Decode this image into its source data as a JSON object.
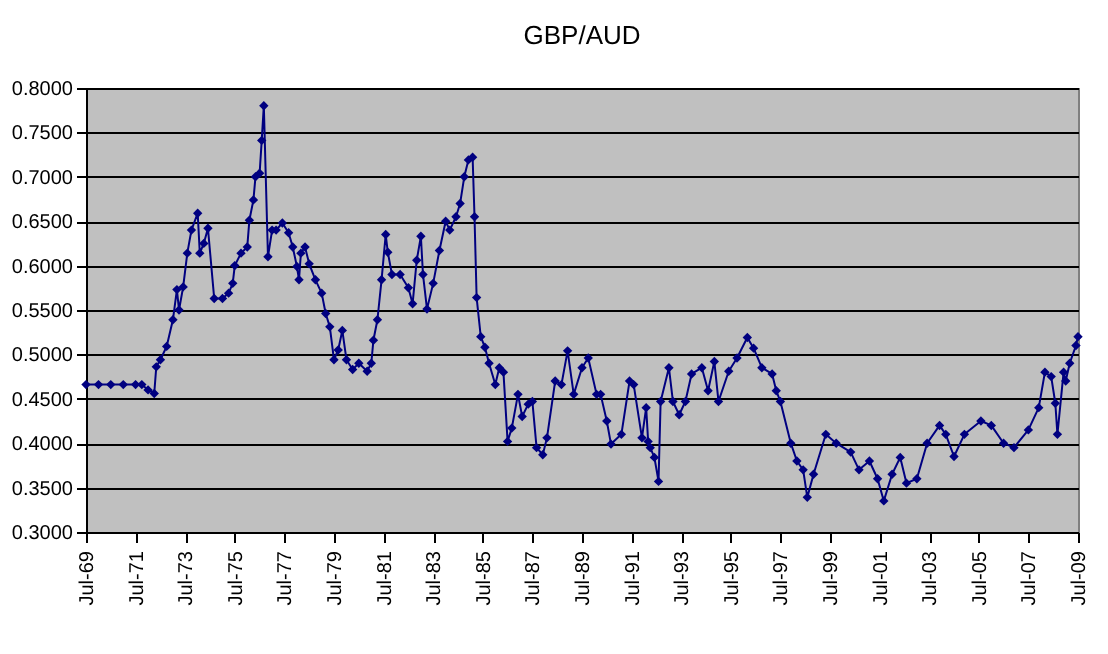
{
  "chart_data": {
    "type": "line",
    "title": "GBP/AUD",
    "x": [
      "1969-07",
      "1970-01",
      "1970-07",
      "1971-01",
      "1971-07",
      "1971-10",
      "1972-01",
      "1972-04",
      "1972-05",
      "1972-07",
      "1972-10",
      "1973-01",
      "1973-03",
      "1973-04",
      "1973-06",
      "1973-08",
      "1973-10",
      "1974-01",
      "1974-02",
      "1974-04",
      "1974-06",
      "1974-09",
      "1975-01",
      "1975-04",
      "1975-06",
      "1975-07",
      "1975-10",
      "1976-01",
      "1976-02",
      "1976-04",
      "1976-05",
      "1976-07",
      "1976-08",
      "1976-09",
      "1976-11",
      "1977-01",
      "1977-03",
      "1977-06",
      "1977-09",
      "1977-11",
      "1978-01",
      "1978-02",
      "1978-03",
      "1978-05",
      "1978-07",
      "1978-10",
      "1979-01",
      "1979-03",
      "1979-05",
      "1979-07",
      "1979-09",
      "1979-11",
      "1980-01",
      "1980-04",
      "1980-07",
      "1980-11",
      "1981-01",
      "1981-02",
      "1981-04",
      "1981-06",
      "1981-08",
      "1981-09",
      "1981-11",
      "1982-03",
      "1982-07",
      "1982-09",
      "1982-11",
      "1983-01",
      "1983-02",
      "1983-04",
      "1983-07",
      "1983-10",
      "1984-01",
      "1984-03",
      "1984-06",
      "1984-08",
      "1984-10",
      "1984-12",
      "1985-02",
      "1985-03",
      "1985-04",
      "1985-06",
      "1985-08",
      "1985-10",
      "1986-01",
      "1986-03",
      "1986-05",
      "1986-07",
      "1986-09",
      "1986-12",
      "1987-02",
      "1987-05",
      "1987-07",
      "1987-09",
      "1987-12",
      "1988-02",
      "1988-06",
      "1988-09",
      "1988-12",
      "1989-03",
      "1989-07",
      "1989-10",
      "1990-02",
      "1990-04",
      "1990-07",
      "1990-09",
      "1991-02",
      "1991-06",
      "1991-08",
      "1991-12",
      "1992-02",
      "1992-03",
      "1992-04",
      "1992-06",
      "1992-08",
      "1992-09",
      "1993-01",
      "1993-03",
      "1993-06",
      "1993-09",
      "1993-12",
      "1994-05",
      "1994-08",
      "1994-11",
      "1995-01",
      "1995-06",
      "1995-10",
      "1996-03",
      "1996-06",
      "1996-10",
      "1997-03",
      "1997-05",
      "1997-07",
      "1997-12",
      "1998-03",
      "1998-06",
      "1998-08",
      "1998-11",
      "1999-05",
      "1999-10",
      "2000-05",
      "2000-09",
      "2001-02",
      "2001-06",
      "2001-09",
      "2002-01",
      "2002-05",
      "2002-08",
      "2003-01",
      "2003-06",
      "2003-12",
      "2004-03",
      "2004-07",
      "2004-12",
      "2005-08",
      "2006-01",
      "2006-07",
      "2006-12",
      "2007-07",
      "2007-12",
      "2008-03",
      "2008-06",
      "2008-08",
      "2008-09",
      "2008-12",
      "2009-01",
      "2009-03",
      "2009-06",
      "2009-07"
    ],
    "series": [
      {
        "color": "#000080",
        "values": [
          0.466,
          0.466,
          0.466,
          0.466,
          0.466,
          0.466,
          0.46,
          0.456,
          0.486,
          0.494,
          0.509,
          0.539,
          0.573,
          0.55,
          0.576,
          0.614,
          0.64,
          0.659,
          0.614,
          0.625,
          0.642,
          0.563,
          0.563,
          0.569,
          0.58,
          0.6,
          0.614,
          0.621,
          0.651,
          0.674,
          0.7,
          0.704,
          0.741,
          0.78,
          0.61,
          0.64,
          0.64,
          0.648,
          0.637,
          0.621,
          0.599,
          0.584,
          0.614,
          0.621,
          0.602,
          0.584,
          0.569,
          0.546,
          0.531,
          0.494,
          0.505,
          0.527,
          0.494,
          0.483,
          0.49,
          0.481,
          0.49,
          0.516,
          0.539,
          0.584,
          0.635,
          0.615,
          0.59,
          0.59,
          0.575,
          0.557,
          0.606,
          0.633,
          0.59,
          0.551,
          0.58,
          0.617,
          0.65,
          0.64,
          0.655,
          0.67,
          0.7,
          0.719,
          0.722,
          0.655,
          0.564,
          0.52,
          0.508,
          0.49,
          0.466,
          0.485,
          0.48,
          0.402,
          0.417,
          0.455,
          0.43,
          0.444,
          0.447,
          0.395,
          0.387,
          0.406,
          0.47,
          0.466,
          0.504,
          0.455,
          0.485,
          0.496,
          0.455,
          0.455,
          0.425,
          0.399,
          0.41,
          0.47,
          0.466,
          0.406,
          0.44,
          0.402,
          0.395,
          0.384,
          0.357,
          0.447,
          0.485,
          0.447,
          0.432,
          0.447,
          0.478,
          0.485,
          0.459,
          0.492,
          0.447,
          0.481,
          0.496,
          0.519,
          0.507,
          0.485,
          0.478,
          0.459,
          0.447,
          0.4,
          0.38,
          0.37,
          0.339,
          0.365,
          0.41,
          0.4,
          0.39,
          0.37,
          0.38,
          0.36,
          0.335,
          0.365,
          0.384,
          0.355,
          0.36,
          0.4,
          0.42,
          0.41,
          0.385,
          0.41,
          0.425,
          0.42,
          0.4,
          0.395,
          0.415,
          0.44,
          0.48,
          0.475,
          0.445,
          0.41,
          0.48,
          0.47,
          0.49,
          0.51,
          0.52
        ]
      }
    ],
    "xlim": [
      "1969-07",
      "2009-07"
    ],
    "xticks": [
      {
        "value": "1969-07",
        "label": "Jul-69"
      },
      {
        "value": "1971-07",
        "label": "Jul-71"
      },
      {
        "value": "1973-07",
        "label": "Jul-73"
      },
      {
        "value": "1975-07",
        "label": "Jul-75"
      },
      {
        "value": "1977-07",
        "label": "Jul-77"
      },
      {
        "value": "1979-07",
        "label": "Jul-79"
      },
      {
        "value": "1981-07",
        "label": "Jul-81"
      },
      {
        "value": "1983-07",
        "label": "Jul-83"
      },
      {
        "value": "1985-07",
        "label": "Jul-85"
      },
      {
        "value": "1987-07",
        "label": "Jul-87"
      },
      {
        "value": "1989-07",
        "label": "Jul-89"
      },
      {
        "value": "1991-07",
        "label": "Jul-91"
      },
      {
        "value": "1993-07",
        "label": "Jul-93"
      },
      {
        "value": "1995-07",
        "label": "Jul-95"
      },
      {
        "value": "1997-07",
        "label": "Jul-97"
      },
      {
        "value": "1999-07",
        "label": "Jul-99"
      },
      {
        "value": "2001-07",
        "label": "Jul-01"
      },
      {
        "value": "2003-07",
        "label": "Jul-03"
      },
      {
        "value": "2005-07",
        "label": "Jul-05"
      },
      {
        "value": "2007-07",
        "label": "Jul-07"
      },
      {
        "value": "2009-07",
        "label": "Jul-09"
      }
    ],
    "ylim": [
      0.3,
      0.8
    ],
    "yticks": [
      {
        "value": 0.3,
        "label": "0.3000"
      },
      {
        "value": 0.35,
        "label": "0.3500"
      },
      {
        "value": 0.4,
        "label": "0.4000"
      },
      {
        "value": 0.45,
        "label": "0.4500"
      },
      {
        "value": 0.5,
        "label": "0.5000"
      },
      {
        "value": 0.55,
        "label": "0.5500"
      },
      {
        "value": 0.6,
        "label": "0.6000"
      },
      {
        "value": 0.65,
        "label": "0.6500"
      },
      {
        "value": 0.7,
        "label": "0.7000"
      },
      {
        "value": 0.75,
        "label": "0.7500"
      },
      {
        "value": 0.8,
        "label": "0.8000"
      }
    ],
    "grid": "y",
    "marker": "diamond",
    "line_style": "solid"
  }
}
